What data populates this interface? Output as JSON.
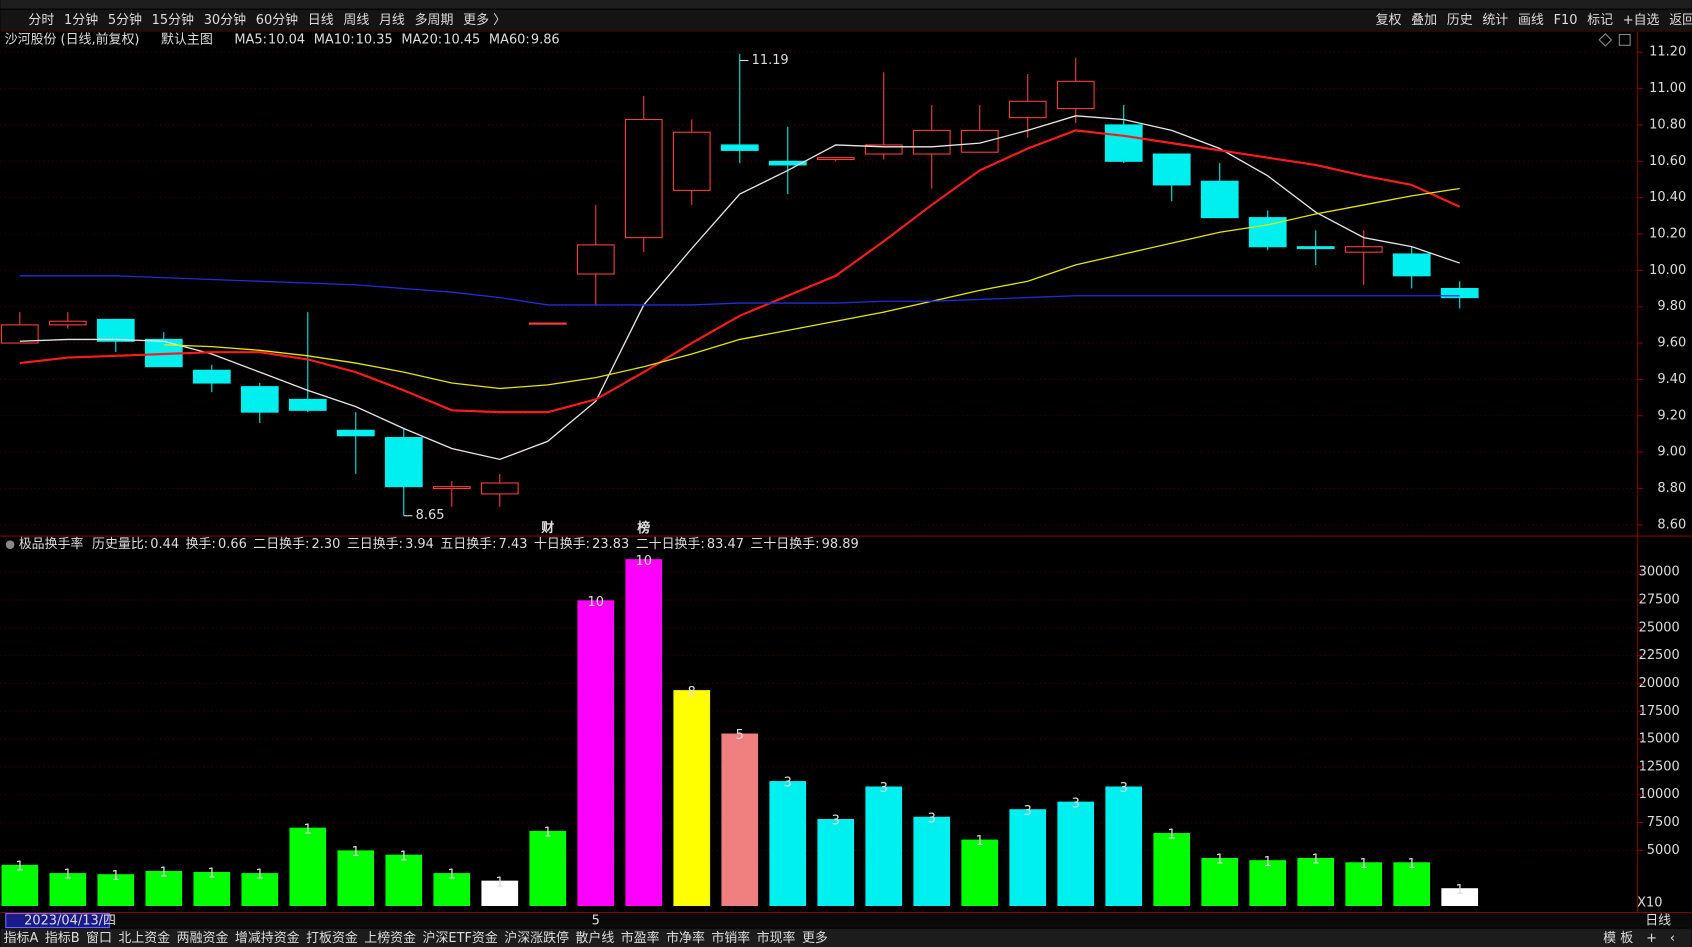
{
  "toolbar": {
    "left": [
      "分时",
      "1分钟",
      "5分钟",
      "15分钟",
      "30分钟",
      "60分钟",
      "日线",
      "周线",
      "月线",
      "多周期",
      "更多 〉"
    ],
    "active": 6,
    "right": [
      "复权",
      "叠加",
      "历史",
      "统计",
      "画线",
      "F10",
      "标记",
      "+自选",
      "返回"
    ]
  },
  "chart_data": [
    {
      "type": "candlestick",
      "title": "沙河股份 (日线,前复权)",
      "subtitle": "默认主图",
      "open": [
        9.6,
        9.7,
        9.73,
        9.62,
        9.45,
        9.36,
        9.29,
        9.12,
        9.08,
        8.8,
        8.77,
        9.71,
        9.98,
        10.18,
        10.44,
        10.69,
        10.6,
        10.61,
        10.64,
        10.64,
        10.65,
        10.84,
        10.89,
        10.8,
        10.64,
        10.49,
        10.29,
        10.13,
        10.1,
        10.09,
        9.9
      ],
      "high": [
        9.77,
        9.77,
        9.73,
        9.66,
        9.48,
        9.38,
        9.77,
        9.22,
        9.13,
        8.84,
        8.88,
        9.71,
        10.36,
        10.96,
        10.83,
        11.19,
        10.79,
        10.62,
        11.09,
        10.91,
        10.91,
        11.08,
        11.17,
        10.91,
        10.64,
        10.59,
        10.33,
        10.22,
        10.22,
        10.13,
        9.94
      ],
      "low": [
        9.6,
        9.68,
        9.55,
        9.47,
        9.33,
        9.16,
        9.22,
        8.88,
        8.65,
        8.7,
        8.7,
        9.71,
        9.81,
        10.1,
        10.36,
        10.59,
        10.42,
        10.6,
        10.61,
        10.45,
        10.65,
        10.73,
        10.81,
        10.59,
        10.38,
        10.29,
        10.11,
        10.03,
        9.92,
        9.9,
        9.79
      ],
      "close": [
        9.7,
        9.72,
        9.61,
        9.47,
        9.38,
        9.22,
        9.23,
        9.09,
        8.81,
        8.81,
        8.83,
        9.71,
        10.14,
        10.83,
        10.76,
        10.66,
        10.58,
        10.62,
        10.69,
        10.77,
        10.77,
        10.93,
        11.04,
        10.6,
        10.47,
        10.29,
        10.13,
        10.12,
        10.13,
        9.97,
        9.85
      ],
      "up_color": "#ff3c3c",
      "down_color": "#00f0f0",
      "series": [
        {
          "name": "MA5:",
          "legend_value": "10.04",
          "color": "#e8e8e8",
          "values": [
            9.61,
            9.62,
            9.62,
            9.61,
            9.54,
            9.44,
            9.34,
            9.25,
            9.13,
            9.02,
            8.96,
            9.06,
            9.28,
            9.81,
            10.12,
            10.42,
            10.55,
            10.69,
            10.68,
            10.68,
            10.7,
            10.77,
            10.85,
            10.83,
            10.77,
            10.67,
            10.52,
            10.32,
            10.18,
            10.13,
            10.04
          ]
        },
        {
          "name": "MA10:",
          "legend_value": "10.35",
          "color": "#ff1a1a",
          "values": [
            9.49,
            9.52,
            9.53,
            9.54,
            9.55,
            9.55,
            9.51,
            9.44,
            9.34,
            9.23,
            9.22,
            9.22,
            9.29,
            9.44,
            9.6,
            9.75,
            9.86,
            9.97,
            10.16,
            10.36,
            10.55,
            10.67,
            10.77,
            10.74,
            10.7,
            10.66,
            10.62,
            10.58,
            10.52,
            10.47,
            10.35
          ]
        },
        {
          "name": "MA20:",
          "legend_value": "10.45",
          "color": "#e6e600",
          "values": [
            null,
            null,
            null,
            9.59,
            9.58,
            9.56,
            9.53,
            9.49,
            9.44,
            9.38,
            9.35,
            9.37,
            9.41,
            9.47,
            9.54,
            9.62,
            9.67,
            9.72,
            9.77,
            9.83,
            9.89,
            9.94,
            10.03,
            10.09,
            10.15,
            10.21,
            10.25,
            10.31,
            10.36,
            10.41,
            10.45
          ]
        },
        {
          "name": "MA60:",
          "legend_value": "9.86",
          "color": "#1a2fe0",
          "values": [
            9.97,
            9.97,
            9.97,
            9.96,
            9.95,
            9.94,
            9.93,
            9.92,
            9.9,
            9.88,
            9.85,
            9.81,
            9.81,
            9.81,
            9.81,
            9.82,
            9.82,
            9.82,
            9.83,
            9.83,
            9.84,
            9.85,
            9.86,
            9.86,
            9.86,
            9.86,
            9.86,
            9.86,
            9.86,
            9.86,
            9.86
          ]
        }
      ],
      "ylim": [
        8.55,
        11.25
      ],
      "yticks": [
        {
          "value": 8.6,
          "label": "8.60"
        },
        {
          "value": 8.8,
          "label": "8.80"
        },
        {
          "value": 9,
          "label": "9.00"
        },
        {
          "value": 9.2,
          "label": "9.20"
        },
        {
          "value": 9.4,
          "label": "9.40"
        },
        {
          "value": 9.6,
          "label": "9.60"
        },
        {
          "value": 9.8,
          "label": "9.80"
        },
        {
          "value": 10,
          "label": "10.00"
        },
        {
          "value": 10.2,
          "label": "10.20"
        },
        {
          "value": 10.4,
          "label": "10.40"
        },
        {
          "value": 10.6,
          "label": "10.60"
        },
        {
          "value": 10.8,
          "label": "10.80"
        },
        {
          "value": 11,
          "label": "11.00"
        },
        {
          "value": 11.2,
          "label": "11.20"
        }
      ],
      "grid": true,
      "annotations": [
        {
          "index": 15,
          "value": 11.19
        },
        {
          "index": 8,
          "value": 8.65
        }
      ],
      "event_markers": [
        {
          "index": 11,
          "text": "财",
          "color": "#4a8cff"
        },
        {
          "index": 13,
          "text": "榜",
          "color": "#ff9a3c"
        }
      ]
    },
    {
      "type": "bar",
      "title": "极品换手率",
      "stats": [
        {
          "label": "历史量比:",
          "value": "0.44",
          "color": "#e8e8e8"
        },
        {
          "label": "换手:",
          "value": "0.66",
          "color": "#e6e600"
        },
        {
          "label": "二日换手:",
          "value": "2.30",
          "color": "#ff00ff"
        },
        {
          "label": "三日换手:",
          "value": "3.94",
          "color": "#00ff00"
        },
        {
          "label": "五日换手:",
          "value": "7.43",
          "color": "#e8e8e8"
        },
        {
          "label": "十日换手:",
          "value": "23.83",
          "color": "#1a2fe0"
        },
        {
          "label": "二十日换手:",
          "value": "83.47",
          "color": "#e8e8e8"
        },
        {
          "label": "三十日换手:",
          "value": "98.89",
          "color": "#e6e600"
        }
      ],
      "values": [
        3700,
        2960,
        2860,
        3150,
        3060,
        2960,
        7040,
        5000,
        4610,
        2960,
        2280,
        6750,
        27470,
        31170,
        19400,
        15500,
        11230,
        7820,
        10740,
        8020,
        5970,
        8700,
        9380,
        10740,
        6560,
        4320,
        4120,
        4320,
        3930,
        3930,
        1600
      ],
      "colors": [
        "#00ff00",
        "#00ff00",
        "#00ff00",
        "#00ff00",
        "#00ff00",
        "#00ff00",
        "#00ff00",
        "#00ff00",
        "#00ff00",
        "#00ff00",
        "#ffffff",
        "#00ff00",
        "#ff00ff",
        "#ff00ff",
        "#ffff00",
        "#f08080",
        "#00f0f0",
        "#00f0f0",
        "#00f0f0",
        "#00f0f0",
        "#00ff00",
        "#00f0f0",
        "#00f0f0",
        "#00f0f0",
        "#00ff00",
        "#00ff00",
        "#00ff00",
        "#00ff00",
        "#00ff00",
        "#00ff00",
        "#ffffff"
      ],
      "bar_labels": [
        "1",
        "1",
        "1",
        "1",
        "1",
        "1",
        "1",
        "1",
        "1",
        "1",
        "1",
        "1",
        "10",
        "10",
        "8",
        "5",
        "3",
        "3",
        "3",
        "3",
        "1",
        "3",
        "3",
        "3",
        "1",
        "1",
        "1",
        "1",
        "1",
        "1",
        "1"
      ],
      "ylim": [
        0,
        31500
      ],
      "yticks": [
        5000,
        7500,
        10000,
        12500,
        15000,
        17500,
        20000,
        22500,
        25000,
        27500,
        30000
      ],
      "grid": true,
      "note": "X10"
    }
  ],
  "footer": {
    "cursor_date": "2023/04/13/四",
    "month_marker": {
      "index": 12,
      "text": "5"
    },
    "period": "日线",
    "tabs": [
      "指标A",
      "指标B",
      "窗口",
      "北上资金",
      "两融资金",
      "增减持资金",
      "打板资金",
      "上榜资金",
      "沪深ETF资金",
      "沪深涨跌停",
      "散户线",
      "市盈率",
      "市净率",
      "市销率",
      "市现率",
      "更多"
    ],
    "highlight_tab": 15,
    "right_tabs": [
      "模 板",
      "+",
      "‹"
    ]
  }
}
